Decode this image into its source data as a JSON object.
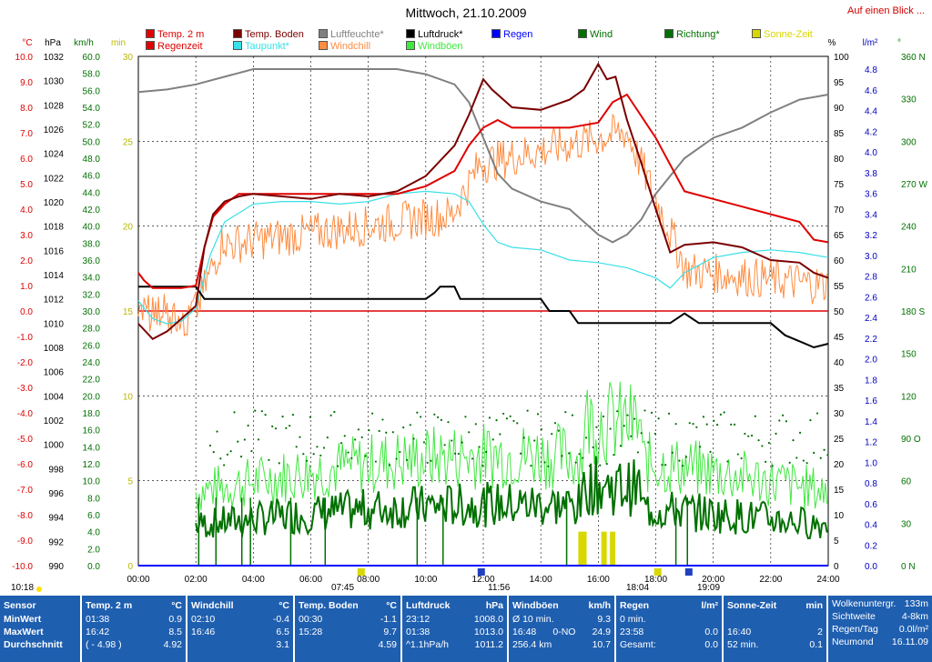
{
  "title": "Mittwoch, 21.10.2009",
  "top_link": "Auf einen Blick ...",
  "legend": [
    {
      "label": "Temp. 2 m",
      "color": "#e00000"
    },
    {
      "label": "Regenzeit",
      "color": "#e00000"
    },
    {
      "label": "Temp. Boden",
      "color": "#7a0000"
    },
    {
      "label": "Taupunkt*",
      "color": "#38e0e8"
    },
    {
      "label": "Luftfeuchte*",
      "color": "#808080"
    },
    {
      "label": "Windchill",
      "color": "#ff8c40"
    },
    {
      "label": "Luftdruck*",
      "color": "#000000"
    },
    {
      "label": "Windböen",
      "color": "#40e840"
    },
    {
      "label": "Regen",
      "color": "#0000ff"
    },
    {
      "label": "Wind",
      "color": "#007000"
    },
    {
      "label": "Richtung*",
      "color": "#007000"
    },
    {
      "label": "Sonne-Zeit",
      "color": "#d8d800"
    }
  ],
  "axis_units": {
    "temp": "°C",
    "hpa": "hPa",
    "kmh": "km/h",
    "min": "min",
    "pct": "%",
    "rain": "l/m²",
    "dir": "°"
  },
  "axes": {
    "temp": [
      "10.0",
      "9.0",
      "8.0",
      "7.0",
      "6.0",
      "5.0",
      "4.0",
      "3.0",
      "2.0",
      "1.0",
      "0.0",
      "-1.0",
      "-2.0",
      "-3.0",
      "-4.0",
      "-5.0",
      "-6.0",
      "-7.0",
      "-8.0",
      "-9.0",
      "-10.0"
    ],
    "hpa": [
      "1032",
      "1030",
      "1028",
      "1026",
      "1024",
      "1022",
      "1020",
      "1018",
      "1016",
      "1014",
      "1012",
      "1010",
      "1008",
      "1006",
      "1004",
      "1002",
      "1000",
      "998",
      "996",
      "994",
      "992",
      "990"
    ],
    "kmh": [
      "60.0",
      "58.0",
      "56.0",
      "54.0",
      "52.0",
      "50.0",
      "48.0",
      "46.0",
      "44.0",
      "42.0",
      "40.0",
      "38.0",
      "36.0",
      "34.0",
      "32.0",
      "30.0",
      "28.0",
      "26.0",
      "24.0",
      "22.0",
      "20.0",
      "18.0",
      "16.0",
      "14.0",
      "12.0",
      "10.0",
      "8.0",
      "6.0",
      "4.0",
      "2.0",
      "0.0"
    ],
    "min": [
      "30",
      "25",
      "20",
      "15",
      "10",
      "5",
      "0"
    ],
    "pct": [
      "100",
      "95",
      "90",
      "85",
      "80",
      "75",
      "70",
      "65",
      "60",
      "55",
      "50",
      "45",
      "40",
      "35",
      "30",
      "25",
      "20",
      "15",
      "10",
      "5",
      "0"
    ],
    "rain": [
      "4.8",
      "4.6",
      "4.4",
      "4.2",
      "4.0",
      "3.8",
      "3.6",
      "3.4",
      "3.2",
      "3.0",
      "2.8",
      "2.6",
      "2.4",
      "2.2",
      "2.0",
      "1.8",
      "1.6",
      "1.4",
      "1.2",
      "1.0",
      "0.8",
      "0.6",
      "0.4",
      "0.2",
      "0.0"
    ],
    "dir": [
      "360 N",
      "330",
      "300",
      "270 W",
      "240",
      "210",
      "180 S",
      "150",
      "120",
      "90 O",
      "60",
      "30",
      "0 N"
    ]
  },
  "time_ticks": [
    "00:00",
    "02:00",
    "04:00",
    "06:00",
    "08:00",
    "10:00",
    "12:00",
    "14:00",
    "16:00",
    "18:00",
    "20:00",
    "22:00",
    "24:00"
  ],
  "markers": {
    "sunrise": "07:45",
    "noon": "11:56",
    "sunset": "18:04",
    "moon": "19:09",
    "moonset": "10:18"
  },
  "chart_data": {
    "type": "line",
    "title": "Mittwoch, 21.10.2009",
    "x_unit": "hour of day",
    "series": [
      {
        "name": "Temp. 2 m",
        "axis": "°C",
        "x": [
          0,
          0.2,
          0.5,
          1,
          1.5,
          2,
          2.3,
          2.6,
          3,
          3.5,
          4,
          5,
          6,
          7,
          8,
          9,
          10,
          11,
          11.5,
          12,
          12.5,
          13,
          14,
          15,
          16,
          16.5,
          17,
          18,
          19,
          20,
          21,
          22,
          23,
          23.5,
          24
        ],
        "y": [
          1.5,
          1.2,
          0.9,
          0.9,
          0.9,
          1.0,
          2.5,
          3.7,
          4.2,
          4.6,
          4.6,
          4.6,
          4.6,
          4.6,
          4.6,
          4.6,
          4.9,
          5.5,
          6.5,
          7.2,
          7.5,
          7.2,
          7.2,
          7.2,
          7.4,
          8.2,
          8.5,
          6.8,
          4.7,
          4.4,
          4.1,
          3.8,
          3.5,
          2.8,
          2.7
        ]
      },
      {
        "name": "Temp. Boden",
        "axis": "°C",
        "x": [
          0,
          0.5,
          1,
          1.5,
          2,
          2.3,
          2.6,
          3,
          3.5,
          4,
          5,
          6,
          7,
          8,
          9,
          10,
          11,
          11.5,
          12,
          12.3,
          13,
          14,
          15,
          15.5,
          16,
          16.3,
          16.6,
          17,
          17.5,
          18,
          18.5,
          19,
          20,
          21,
          22,
          23,
          23.5,
          24
        ],
        "y": [
          -0.5,
          -1.1,
          -0.8,
          -0.3,
          0.2,
          2.5,
          3.8,
          4.3,
          4.5,
          4.6,
          4.5,
          4.4,
          4.6,
          4.5,
          4.7,
          5.3,
          6.5,
          7.7,
          9.1,
          8.7,
          8.0,
          7.9,
          8.3,
          8.7,
          9.7,
          9.1,
          9.2,
          7.5,
          5.8,
          4.0,
          2.3,
          2.6,
          2.7,
          2.5,
          2.0,
          1.9,
          1.5,
          1.3
        ]
      },
      {
        "name": "Taupunkt*",
        "axis": "°C",
        "x": [
          0,
          0.5,
          1,
          1.5,
          2,
          2.5,
          3,
          4,
          5,
          6,
          7,
          8,
          9,
          10,
          11,
          11.5,
          12,
          12.5,
          13,
          14,
          15,
          16,
          17,
          18,
          18.5,
          19,
          20,
          21,
          22,
          23,
          24
        ],
        "y": [
          0.4,
          -0.3,
          -0.5,
          -0.4,
          0.1,
          2.2,
          3.5,
          4.2,
          4.3,
          4.3,
          4.2,
          4.3,
          4.6,
          4.7,
          4.6,
          4.3,
          3.4,
          2.7,
          2.5,
          2.4,
          2.0,
          1.9,
          1.7,
          1.3,
          0.9,
          1.5,
          2.1,
          2.3,
          2.4,
          2.3,
          2.1
        ]
      },
      {
        "name": "Luftfeuchte*",
        "axis": "%",
        "x": [
          0,
          1,
          2,
          3,
          4,
          5,
          6,
          7,
          8,
          9,
          10,
          11,
          11.5,
          12,
          12.5,
          13,
          14,
          15,
          16,
          16.5,
          17,
          17.5,
          18,
          19,
          20,
          21,
          22,
          23,
          24
        ],
        "y": [
          93,
          93.5,
          94.5,
          96,
          97.5,
          97.5,
          97.5,
          97.5,
          97.5,
          97.5,
          96.5,
          94.5,
          91,
          84,
          77,
          74,
          71.5,
          70,
          65,
          63.5,
          65,
          68,
          73,
          80,
          84,
          86,
          89,
          91.5,
          92.5
        ]
      },
      {
        "name": "Luftdruck*",
        "axis": "hPa",
        "x": [
          0,
          1,
          2,
          2.3,
          3,
          4,
          5,
          6,
          7,
          8,
          9,
          10,
          10.3,
          10.5,
          11,
          11.2,
          11.5,
          12,
          13,
          14,
          14.3,
          15,
          15.3,
          16,
          17,
          18,
          18.5,
          19,
          19.5,
          20,
          21,
          22,
          22.5,
          23,
          23.5,
          24
        ],
        "y": [
          1013,
          1013,
          1013,
          1012,
          1012,
          1012,
          1012,
          1012,
          1012,
          1012,
          1012,
          1012,
          1012.5,
          1013,
          1013,
          1012,
          1012,
          1012,
          1012,
          1012,
          1011,
          1011,
          1010,
          1010,
          1010,
          1010,
          1010,
          1010.8,
          1010,
          1010,
          1010,
          1010,
          1009,
          1008.5,
          1008,
          1008.3
        ]
      }
    ],
    "sun_minutes": [
      {
        "x": 15.4,
        "y": 2.0
      },
      {
        "x": 15.5,
        "y": 2.0
      },
      {
        "x": 16.2,
        "y": 2.0
      },
      {
        "x": 16.5,
        "y": 2.0
      }
    ],
    "ylim": {
      "temp": [
        -10,
        10
      ],
      "hpa": [
        990,
        1032
      ],
      "kmh": [
        0,
        60
      ],
      "pct": [
        0,
        100
      ]
    }
  },
  "stats": {
    "sensor": {
      "h": "Sensor",
      "r1": "MinWert",
      "r2": "MaxWert",
      "r3": "Durchschnitt"
    },
    "temp2m": {
      "h": "Temp. 2 m",
      "u": "°C",
      "r1a": "01:38",
      "r1b": "0.9",
      "r2a": "16:42",
      "r2b": "8.5",
      "r3a": "( - 4.98 )",
      "r3b": "4.92"
    },
    "windchill": {
      "h": "Windchill",
      "u": "°C",
      "r1a": "02:10",
      "r1b": "-0.4",
      "r2a": "16:46",
      "r2b": "6.5",
      "r3a": "",
      "r3b": "3.1"
    },
    "boden": {
      "h": "Temp. Boden",
      "u": "°C",
      "r1a": "00:30",
      "r1b": "-1.1",
      "r2a": "15:28",
      "r2b": "9.7",
      "r3a": "",
      "r3b": "4.59"
    },
    "druck": {
      "h": "Luftdruck",
      "u": "hPa",
      "r1a": "23:12",
      "r1b": "1008.0",
      "r2a": "01:38",
      "r2b": "1013.0",
      "r3a": "^1.1hPa/h",
      "r3b": "1011.2"
    },
    "boeen": {
      "h": "Windböen",
      "u": "km/h",
      "r1a": "Ø 10 min.",
      "r1b": "9.3",
      "r2a": "16:48",
      "r2c": "0-NO",
      "r2b": "24.9",
      "r3a": "256.4 km",
      "r3b": "10.7"
    },
    "regen": {
      "h": "Regen",
      "u": "l/m²",
      "r1a": "0 min.",
      "r1b": "",
      "r2a": "23:58",
      "r2b": "0.0",
      "r3a": "Gesamt:",
      "r3b": "0.0"
    },
    "sonne": {
      "h": "Sonne-Zeit",
      "u": "min",
      "r1a": "",
      "r1b": "",
      "r2a": "16:40",
      "r2b": "2",
      "r3a": "52 min.",
      "r3b": "0.1"
    },
    "extra": [
      {
        "k": "Wolkenuntergr.",
        "v": "133m"
      },
      {
        "k": "Sichtweite",
        "v": "4-8km"
      },
      {
        "k": "Regen/Tag",
        "v": "0.0l/m²"
      },
      {
        "k": "Neumond",
        "v": "16.11.09"
      }
    ]
  }
}
